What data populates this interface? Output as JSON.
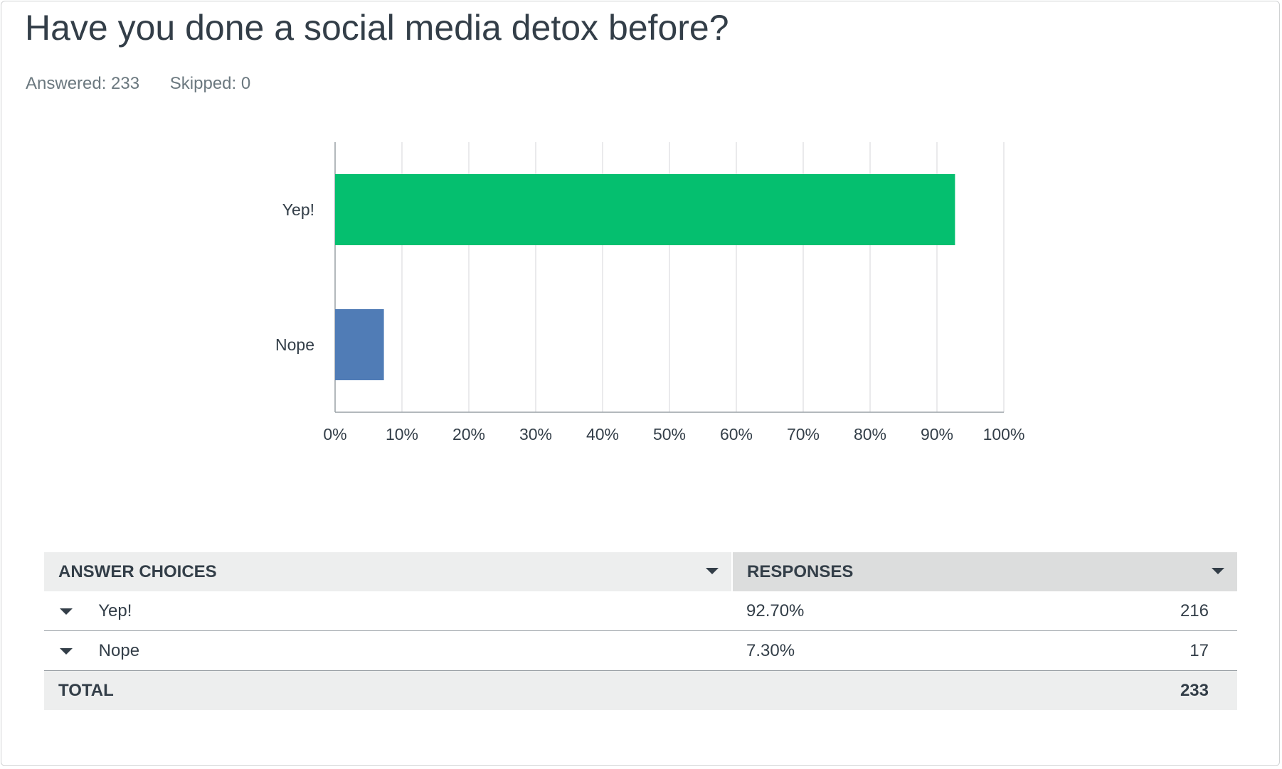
{
  "question": {
    "title": "Have you done a social media detox before?",
    "answered_label": "Answered: 233",
    "skipped_label": "Skipped: 0"
  },
  "chart_data": {
    "type": "bar",
    "orientation": "horizontal",
    "categories": [
      "Yep!",
      "Nope"
    ],
    "values": [
      92.7,
      7.3
    ],
    "colors": [
      "#05bf6f",
      "#507cb6"
    ],
    "xlim": [
      0,
      100
    ],
    "xticks": [
      0,
      10,
      20,
      30,
      40,
      50,
      60,
      70,
      80,
      90,
      100
    ],
    "xtick_labels": [
      "0%",
      "10%",
      "20%",
      "30%",
      "40%",
      "50%",
      "60%",
      "70%",
      "80%",
      "90%",
      "100%"
    ],
    "grid": true
  },
  "table": {
    "headers": {
      "choice": "ANSWER CHOICES",
      "responses": "RESPONSES"
    },
    "rows": [
      {
        "choice": "Yep!",
        "percent": "92.70%",
        "count": "216"
      },
      {
        "choice": "Nope",
        "percent": "7.30%",
        "count": "17"
      }
    ],
    "total": {
      "label": "TOTAL",
      "count": "233"
    }
  }
}
